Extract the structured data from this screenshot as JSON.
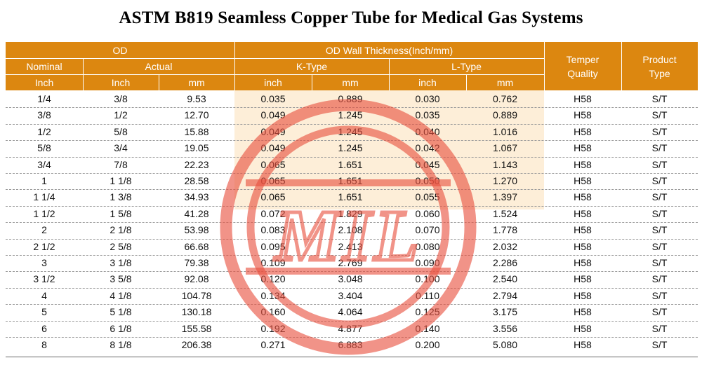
{
  "title": "ASTM B819 Seamless Copper Tube for Medical Gas Systems",
  "header": {
    "od": "OD",
    "wall": "OD Wall Thickness(Inch/mm)",
    "nominal": "Nominal",
    "actual": "Actual",
    "k_type": "K-Type",
    "l_type": "L-Type",
    "inch": "Inch",
    "inch_lower": "inch",
    "mm": "mm",
    "temper": "Temper Quality",
    "product": "Product Type"
  },
  "rows": [
    [
      "1/4",
      "3/8",
      "9.53",
      "0.035",
      "0.889",
      "0.030",
      "0.762",
      "H58",
      "S/T"
    ],
    [
      "3/8",
      "1/2",
      "12.70",
      "0.049",
      "1.245",
      "0.035",
      "0.889",
      "H58",
      "S/T"
    ],
    [
      "1/2",
      "5/8",
      "15.88",
      "0.049",
      "1.245",
      "0.040",
      "1.016",
      "H58",
      "S/T"
    ],
    [
      "5/8",
      "3/4",
      "19.05",
      "0.049",
      "1.245",
      "0.042",
      "1.067",
      "H58",
      "S/T"
    ],
    [
      "3/4",
      "7/8",
      "22.23",
      "0.065",
      "1.651",
      "0.045",
      "1.143",
      "H58",
      "S/T"
    ],
    [
      "1",
      "1 1/8",
      "28.58",
      "0.065",
      "1.651",
      "0.050",
      "1.270",
      "H58",
      "S/T"
    ],
    [
      "1 1/4",
      "1 3/8",
      "34.93",
      "0.065",
      "1.651",
      "0.055",
      "1.397",
      "H58",
      "S/T"
    ],
    [
      "1 1/2",
      "1 5/8",
      "41.28",
      "0.072",
      "1.829",
      "0.060",
      "1.524",
      "H58",
      "S/T"
    ],
    [
      "2",
      "2 1/8",
      "53.98",
      "0.083",
      "2.108",
      "0.070",
      "1.778",
      "H58",
      "S/T"
    ],
    [
      "2 1/2",
      "2 5/8",
      "66.68",
      "0.095",
      "2.413",
      "0.080",
      "2.032",
      "H58",
      "S/T"
    ],
    [
      "3",
      "3 1/8",
      "79.38",
      "0.109",
      "2.769",
      "0.090",
      "2.286",
      "H58",
      "S/T"
    ],
    [
      "3 1/2",
      "3 5/8",
      "92.08",
      "0.120",
      "3.048",
      "0.100",
      "2.540",
      "H58",
      "S/T"
    ],
    [
      "4",
      "4 1/8",
      "104.78",
      "0.134",
      "3.404",
      "0.110",
      "2.794",
      "H58",
      "S/T"
    ],
    [
      "5",
      "5 1/8",
      "130.18",
      "0.160",
      "4.064",
      "0.125",
      "3.175",
      "H58",
      "S/T"
    ],
    [
      "6",
      "6 1/8",
      "155.58",
      "0.192",
      "4.877",
      "0.140",
      "3.556",
      "H58",
      "S/T"
    ],
    [
      "8",
      "8 1/8",
      "206.38",
      "0.271",
      "6.883",
      "0.200",
      "5.080",
      "H58",
      "S/T"
    ]
  ],
  "colors": {
    "header_bg": "#dc8710",
    "shade_bg": "#fdeed8",
    "watermark": "#e8503f"
  },
  "watermark": {
    "text": "MIL"
  }
}
